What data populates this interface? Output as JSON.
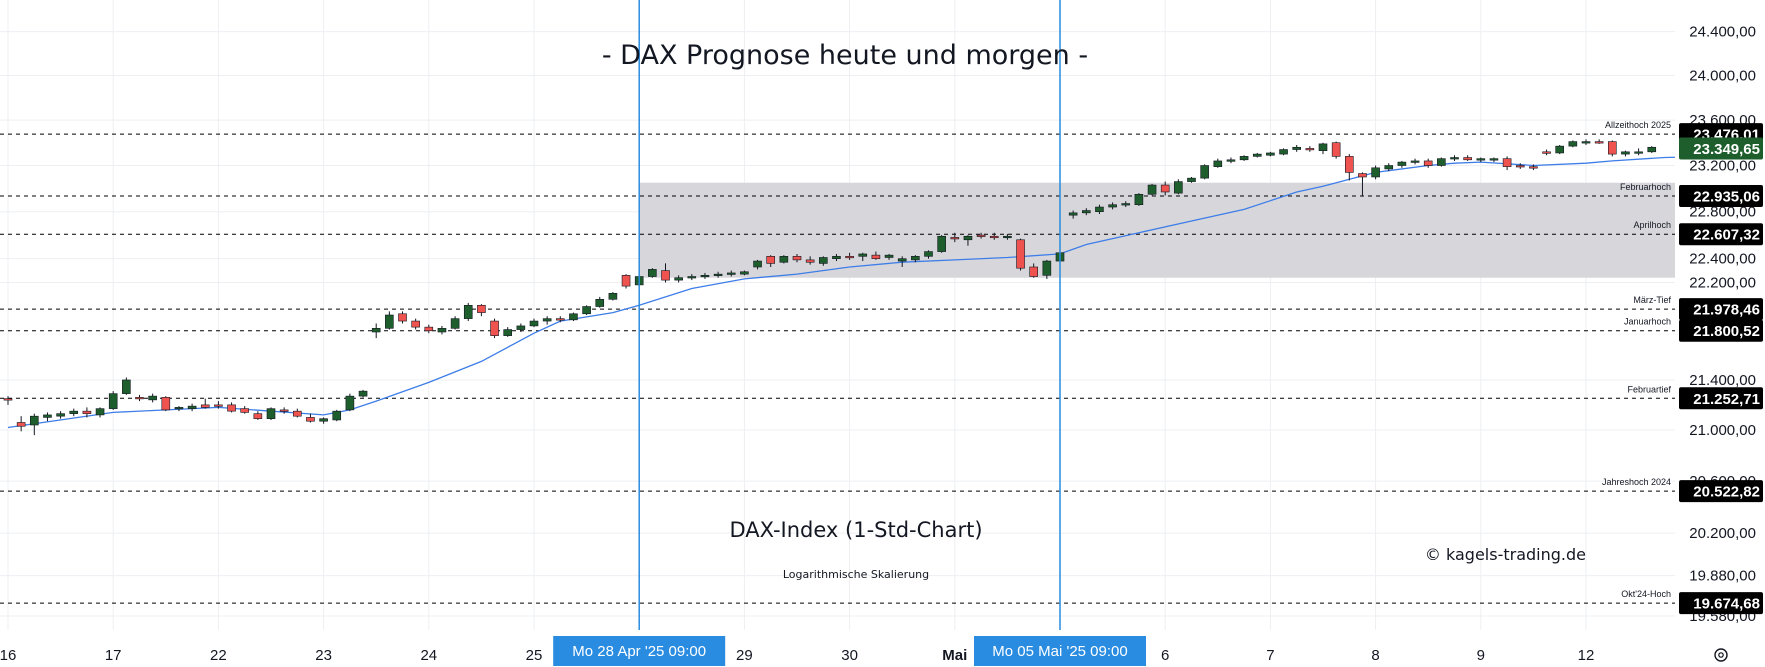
{
  "title": "- DAX Prognose heute und morgen -",
  "subtitle": "DAX-Index (1-Std-Chart)",
  "scale_note": "Logarithmische Skalierung",
  "copyright": "© kagels-trading.de",
  "settings_icon": "gear-icon",
  "colors": {
    "up": "#1e5e2c",
    "down": "#ef5350",
    "ma": "#3d7de8",
    "vline": "#2a8ce0",
    "zone": "#d7d7db",
    "label_bg": "#000000",
    "last_price_bg": "#1e5e2c"
  },
  "chart_data": {
    "type": "candlestick",
    "title": "- DAX Prognose heute und morgen -",
    "subtitle": "DAX-Index (1-Std-Chart)",
    "y_scale": "log",
    "ylim": [
      19480,
      24700
    ],
    "y_ticks": [
      {
        "v": 24400,
        "label": "24.400,00"
      },
      {
        "v": 24000,
        "label": "24.000,00"
      },
      {
        "v": 23600,
        "label": "23.600,00"
      },
      {
        "v": 23200,
        "label": "23.200,00"
      },
      {
        "v": 22800,
        "label": "22.800,00"
      },
      {
        "v": 22400,
        "label": "22.400,00"
      },
      {
        "v": 22200,
        "label": "22.200,00"
      },
      {
        "v": 21400,
        "label": "21.400,00"
      },
      {
        "v": 21000,
        "label": "21.000,00"
      },
      {
        "v": 20600,
        "label": "20.600,00"
      },
      {
        "v": 20200,
        "label": "20.200,00"
      },
      {
        "v": 19880,
        "label": "19.880,00"
      },
      {
        "v": 19580,
        "label": "19.580,00"
      }
    ],
    "x_ticks": [
      {
        "i": 0,
        "label": "16"
      },
      {
        "i": 8,
        "label": "17"
      },
      {
        "i": 16,
        "label": "22"
      },
      {
        "i": 24,
        "label": "23"
      },
      {
        "i": 32,
        "label": "24"
      },
      {
        "i": 40,
        "label": "25"
      },
      {
        "i": 56,
        "label": "29"
      },
      {
        "i": 64,
        "label": "30"
      },
      {
        "i": 72,
        "label": "Mai"
      },
      {
        "i": 88,
        "label": "6"
      },
      {
        "i": 96,
        "label": "7"
      },
      {
        "i": 104,
        "label": "8"
      },
      {
        "i": 112,
        "label": "9"
      },
      {
        "i": 120,
        "label": "12"
      }
    ],
    "x_domain": [
      0,
      133
    ],
    "levels": [
      {
        "label": "Allzeithoch 2025",
        "value": 23476.01,
        "value_label": "23.476,01"
      },
      {
        "label": "Februarhoch",
        "value": 22935.06,
        "value_label": "22.935,06"
      },
      {
        "label": "Aprilhoch",
        "value": 22607.32,
        "value_label": "22.607,32"
      },
      {
        "label": "März-Tief",
        "value": 21978.46,
        "value_label": "21.978,46"
      },
      {
        "label": "Januarhoch",
        "value": 21800.52,
        "value_label": "21.800,52"
      },
      {
        "label": "Februartief",
        "value": 21252.71,
        "value_label": "21.252,71"
      },
      {
        "label": "Jahreshoch 2024",
        "value": 20522.82,
        "value_label": "20.522,82"
      },
      {
        "label": "Okt'24-Hoch",
        "value": 19674.68,
        "value_label": "19.674,68"
      }
    ],
    "last_price": {
      "value": 23349.65,
      "label": "23.349,65"
    },
    "zone": {
      "i_start": 48,
      "y_low": 22240,
      "y_high": 23050
    },
    "vertical_markers": [
      {
        "i": 48,
        "label": "Mo 28 Apr '25   09:00"
      },
      {
        "i": 80,
        "label": "Mo 05 Mai '25   09:00"
      }
    ],
    "candles": [
      {
        "o": 21250,
        "h": 21270,
        "l": 21200,
        "c": 21240
      },
      {
        "o": 21060,
        "h": 21110,
        "l": 20990,
        "c": 21030
      },
      {
        "o": 21040,
        "h": 21130,
        "l": 20960,
        "c": 21110
      },
      {
        "o": 21100,
        "h": 21140,
        "l": 21070,
        "c": 21120
      },
      {
        "o": 21110,
        "h": 21150,
        "l": 21090,
        "c": 21130
      },
      {
        "o": 21130,
        "h": 21170,
        "l": 21110,
        "c": 21150
      },
      {
        "o": 21150,
        "h": 21180,
        "l": 21100,
        "c": 21130
      },
      {
        "o": 21120,
        "h": 21180,
        "l": 21100,
        "c": 21170
      },
      {
        "o": 21170,
        "h": 21310,
        "l": 21160,
        "c": 21290
      },
      {
        "o": 21290,
        "h": 21420,
        "l": 21280,
        "c": 21400
      },
      {
        "o": 21260,
        "h": 21280,
        "l": 21230,
        "c": 21250
      },
      {
        "o": 21240,
        "h": 21290,
        "l": 21220,
        "c": 21270
      },
      {
        "o": 21260,
        "h": 21270,
        "l": 21150,
        "c": 21160
      },
      {
        "o": 21170,
        "h": 21190,
        "l": 21150,
        "c": 21180
      },
      {
        "o": 21170,
        "h": 21210,
        "l": 21150,
        "c": 21190
      },
      {
        "o": 21200,
        "h": 21250,
        "l": 21170,
        "c": 21180
      },
      {
        "o": 21200,
        "h": 21230,
        "l": 21170,
        "c": 21190
      },
      {
        "o": 21200,
        "h": 21220,
        "l": 21140,
        "c": 21150
      },
      {
        "o": 21170,
        "h": 21190,
        "l": 21130,
        "c": 21140
      },
      {
        "o": 21130,
        "h": 21150,
        "l": 21080,
        "c": 21090
      },
      {
        "o": 21090,
        "h": 21180,
        "l": 21080,
        "c": 21170
      },
      {
        "o": 21160,
        "h": 21180,
        "l": 21130,
        "c": 21150
      },
      {
        "o": 21150,
        "h": 21170,
        "l": 21100,
        "c": 21110
      },
      {
        "o": 21100,
        "h": 21130,
        "l": 21060,
        "c": 21070
      },
      {
        "o": 21070,
        "h": 21100,
        "l": 21050,
        "c": 21090
      },
      {
        "o": 21080,
        "h": 21160,
        "l": 21070,
        "c": 21150
      },
      {
        "o": 21160,
        "h": 21290,
        "l": 21150,
        "c": 21270
      },
      {
        "o": 21270,
        "h": 21320,
        "l": 21260,
        "c": 21310
      },
      {
        "o": 21790,
        "h": 21860,
        "l": 21740,
        "c": 21820
      },
      {
        "o": 21820,
        "h": 21960,
        "l": 21810,
        "c": 21930
      },
      {
        "o": 21940,
        "h": 21960,
        "l": 21860,
        "c": 21880
      },
      {
        "o": 21880,
        "h": 21900,
        "l": 21810,
        "c": 21830
      },
      {
        "o": 21830,
        "h": 21850,
        "l": 21780,
        "c": 21800
      },
      {
        "o": 21790,
        "h": 21840,
        "l": 21770,
        "c": 21820
      },
      {
        "o": 21820,
        "h": 21920,
        "l": 21810,
        "c": 21900
      },
      {
        "o": 21900,
        "h": 22030,
        "l": 21880,
        "c": 22010
      },
      {
        "o": 22010,
        "h": 22020,
        "l": 21920,
        "c": 21950
      },
      {
        "o": 21880,
        "h": 21900,
        "l": 21740,
        "c": 21760
      },
      {
        "o": 21760,
        "h": 21830,
        "l": 21750,
        "c": 21810
      },
      {
        "o": 21810,
        "h": 21860,
        "l": 21790,
        "c": 21840
      },
      {
        "o": 21840,
        "h": 21900,
        "l": 21830,
        "c": 21880
      },
      {
        "o": 21880,
        "h": 21920,
        "l": 21850,
        "c": 21900
      },
      {
        "o": 21900,
        "h": 21920,
        "l": 21870,
        "c": 21890
      },
      {
        "o": 21890,
        "h": 21950,
        "l": 21880,
        "c": 21940
      },
      {
        "o": 21940,
        "h": 22010,
        "l": 21930,
        "c": 22000
      },
      {
        "o": 22000,
        "h": 22080,
        "l": 21990,
        "c": 22060
      },
      {
        "o": 22060,
        "h": 22120,
        "l": 22050,
        "c": 22110
      },
      {
        "o": 22260,
        "h": 22270,
        "l": 22150,
        "c": 22170
      },
      {
        "o": 22180,
        "h": 22260,
        "l": 22170,
        "c": 22250
      },
      {
        "o": 22250,
        "h": 22320,
        "l": 22240,
        "c": 22310
      },
      {
        "o": 22300,
        "h": 22360,
        "l": 22200,
        "c": 22220
      },
      {
        "o": 22220,
        "h": 22260,
        "l": 22200,
        "c": 22240
      },
      {
        "o": 22240,
        "h": 22270,
        "l": 22220,
        "c": 22250
      },
      {
        "o": 22250,
        "h": 22280,
        "l": 22230,
        "c": 22260
      },
      {
        "o": 22260,
        "h": 22290,
        "l": 22240,
        "c": 22270
      },
      {
        "o": 22270,
        "h": 22300,
        "l": 22250,
        "c": 22280
      },
      {
        "o": 22270,
        "h": 22300,
        "l": 22260,
        "c": 22290
      },
      {
        "o": 22330,
        "h": 22390,
        "l": 22310,
        "c": 22380
      },
      {
        "o": 22420,
        "h": 22430,
        "l": 22330,
        "c": 22360
      },
      {
        "o": 22370,
        "h": 22430,
        "l": 22360,
        "c": 22420
      },
      {
        "o": 22420,
        "h": 22440,
        "l": 22370,
        "c": 22390
      },
      {
        "o": 22390,
        "h": 22420,
        "l": 22350,
        "c": 22370
      },
      {
        "o": 22360,
        "h": 22420,
        "l": 22340,
        "c": 22410
      },
      {
        "o": 22400,
        "h": 22440,
        "l": 22380,
        "c": 22420
      },
      {
        "o": 22420,
        "h": 22450,
        "l": 22390,
        "c": 22410
      },
      {
        "o": 22420,
        "h": 22450,
        "l": 22380,
        "c": 22440
      },
      {
        "o": 22430,
        "h": 22460,
        "l": 22390,
        "c": 22400
      },
      {
        "o": 22410,
        "h": 22440,
        "l": 22390,
        "c": 22430
      },
      {
        "o": 22380,
        "h": 22420,
        "l": 22330,
        "c": 22400
      },
      {
        "o": 22390,
        "h": 22430,
        "l": 22370,
        "c": 22420
      },
      {
        "o": 22420,
        "h": 22470,
        "l": 22400,
        "c": 22460
      },
      {
        "o": 22460,
        "h": 22600,
        "l": 22450,
        "c": 22590
      },
      {
        "o": 22580,
        "h": 22620,
        "l": 22540,
        "c": 22570
      },
      {
        "o": 22560,
        "h": 22600,
        "l": 22510,
        "c": 22590
      },
      {
        "o": 22600,
        "h": 22620,
        "l": 22570,
        "c": 22590
      },
      {
        "o": 22590,
        "h": 22620,
        "l": 22560,
        "c": 22580
      },
      {
        "o": 22580,
        "h": 22610,
        "l": 22560,
        "c": 22590
      },
      {
        "o": 22560,
        "h": 22570,
        "l": 22300,
        "c": 22320
      },
      {
        "o": 22330,
        "h": 22360,
        "l": 22240,
        "c": 22250
      },
      {
        "o": 22260,
        "h": 22390,
        "l": 22230,
        "c": 22380
      },
      {
        "o": 22380,
        "h": 22460,
        "l": 22370,
        "c": 22450
      },
      {
        "o": 22770,
        "h": 22810,
        "l": 22740,
        "c": 22790
      },
      {
        "o": 22790,
        "h": 22830,
        "l": 22770,
        "c": 22810
      },
      {
        "o": 22800,
        "h": 22860,
        "l": 22780,
        "c": 22840
      },
      {
        "o": 22840,
        "h": 22880,
        "l": 22820,
        "c": 22860
      },
      {
        "o": 22860,
        "h": 22890,
        "l": 22840,
        "c": 22870
      },
      {
        "o": 22860,
        "h": 22960,
        "l": 22850,
        "c": 22950
      },
      {
        "o": 22950,
        "h": 23040,
        "l": 22940,
        "c": 23030
      },
      {
        "o": 23030,
        "h": 23060,
        "l": 22940,
        "c": 22970
      },
      {
        "o": 22960,
        "h": 23080,
        "l": 22950,
        "c": 23060
      },
      {
        "o": 23060,
        "h": 23100,
        "l": 23050,
        "c": 23090
      },
      {
        "o": 23090,
        "h": 23210,
        "l": 23080,
        "c": 23200
      },
      {
        "o": 23190,
        "h": 23260,
        "l": 23180,
        "c": 23240
      },
      {
        "o": 23240,
        "h": 23270,
        "l": 23220,
        "c": 23250
      },
      {
        "o": 23250,
        "h": 23290,
        "l": 23240,
        "c": 23280
      },
      {
        "o": 23280,
        "h": 23310,
        "l": 23270,
        "c": 23300
      },
      {
        "o": 23290,
        "h": 23320,
        "l": 23280,
        "c": 23310
      },
      {
        "o": 23300,
        "h": 23350,
        "l": 23290,
        "c": 23340
      },
      {
        "o": 23340,
        "h": 23380,
        "l": 23320,
        "c": 23360
      },
      {
        "o": 23350,
        "h": 23370,
        "l": 23320,
        "c": 23340
      },
      {
        "o": 23330,
        "h": 23400,
        "l": 23300,
        "c": 23390
      },
      {
        "o": 23400,
        "h": 23410,
        "l": 23260,
        "c": 23280
      },
      {
        "o": 23280,
        "h": 23300,
        "l": 23070,
        "c": 23140
      },
      {
        "o": 23130,
        "h": 23140,
        "l": 22930,
        "c": 23100
      },
      {
        "o": 23100,
        "h": 23200,
        "l": 23080,
        "c": 23180
      },
      {
        "o": 23170,
        "h": 23220,
        "l": 23150,
        "c": 23200
      },
      {
        "o": 23200,
        "h": 23240,
        "l": 23180,
        "c": 23230
      },
      {
        "o": 23230,
        "h": 23260,
        "l": 23210,
        "c": 23240
      },
      {
        "o": 23240,
        "h": 23260,
        "l": 23180,
        "c": 23200
      },
      {
        "o": 23200,
        "h": 23270,
        "l": 23190,
        "c": 23260
      },
      {
        "o": 23260,
        "h": 23290,
        "l": 23240,
        "c": 23270
      },
      {
        "o": 23270,
        "h": 23290,
        "l": 23240,
        "c": 23250
      },
      {
        "o": 23250,
        "h": 23270,
        "l": 23230,
        "c": 23260
      },
      {
        "o": 23250,
        "h": 23270,
        "l": 23230,
        "c": 23260
      },
      {
        "o": 23260,
        "h": 23280,
        "l": 23160,
        "c": 23190
      },
      {
        "o": 23200,
        "h": 23220,
        "l": 23170,
        "c": 23190
      },
      {
        "o": 23190,
        "h": 23210,
        "l": 23160,
        "c": 23180
      },
      {
        "o": 23320,
        "h": 23340,
        "l": 23290,
        "c": 23310
      },
      {
        "o": 23310,
        "h": 23380,
        "l": 23300,
        "c": 23370
      },
      {
        "o": 23370,
        "h": 23420,
        "l": 23360,
        "c": 23410
      },
      {
        "o": 23400,
        "h": 23430,
        "l": 23380,
        "c": 23410
      },
      {
        "o": 23410,
        "h": 23430,
        "l": 23390,
        "c": 23400
      },
      {
        "o": 23410,
        "h": 23420,
        "l": 23280,
        "c": 23300
      },
      {
        "o": 23300,
        "h": 23330,
        "l": 23280,
        "c": 23320
      },
      {
        "o": 23310,
        "h": 23350,
        "l": 23290,
        "c": 23320
      },
      {
        "o": 23320,
        "h": 23370,
        "l": 23310,
        "c": 23360
      }
    ],
    "ma": [
      [
        0,
        21020
      ],
      [
        8,
        21140
      ],
      [
        16,
        21180
      ],
      [
        24,
        21120
      ],
      [
        26,
        21160
      ],
      [
        28,
        21230
      ],
      [
        32,
        21380
      ],
      [
        36,
        21550
      ],
      [
        40,
        21780
      ],
      [
        42,
        21880
      ],
      [
        46,
        21950
      ],
      [
        48,
        22010
      ],
      [
        52,
        22150
      ],
      [
        56,
        22230
      ],
      [
        60,
        22270
      ],
      [
        64,
        22330
      ],
      [
        68,
        22370
      ],
      [
        72,
        22390
      ],
      [
        76,
        22410
      ],
      [
        80,
        22440
      ],
      [
        82,
        22520
      ],
      [
        86,
        22620
      ],
      [
        90,
        22720
      ],
      [
        94,
        22820
      ],
      [
        98,
        22970
      ],
      [
        100,
        23020
      ],
      [
        104,
        23140
      ],
      [
        108,
        23200
      ],
      [
        110,
        23220
      ],
      [
        112,
        23230
      ],
      [
        116,
        23200
      ],
      [
        120,
        23220
      ],
      [
        122,
        23240
      ],
      [
        126,
        23270
      ],
      [
        130,
        23280
      ]
    ]
  }
}
